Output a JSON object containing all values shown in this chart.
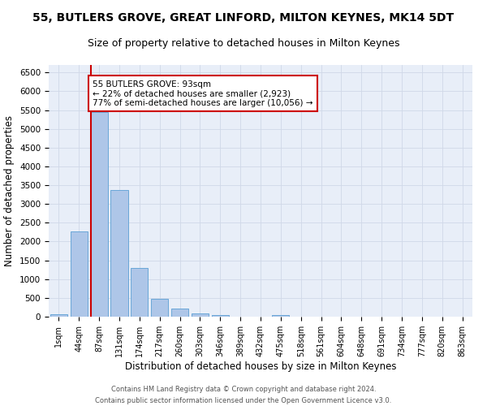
{
  "title": "55, BUTLERS GROVE, GREAT LINFORD, MILTON KEYNES, MK14 5DT",
  "subtitle": "Size of property relative to detached houses in Milton Keynes",
  "xlabel": "Distribution of detached houses by size in Milton Keynes",
  "ylabel": "Number of detached properties",
  "footer_line1": "Contains HM Land Registry data © Crown copyright and database right 2024.",
  "footer_line2": "Contains public sector information licensed under the Open Government Licence v3.0.",
  "categories": [
    "1sqm",
    "44sqm",
    "87sqm",
    "131sqm",
    "174sqm",
    "217sqm",
    "260sqm",
    "303sqm",
    "346sqm",
    "389sqm",
    "432sqm",
    "475sqm",
    "518sqm",
    "561sqm",
    "604sqm",
    "648sqm",
    "691sqm",
    "734sqm",
    "777sqm",
    "820sqm",
    "863sqm"
  ],
  "values": [
    60,
    2280,
    5450,
    3380,
    1300,
    480,
    210,
    90,
    50,
    0,
    0,
    50,
    0,
    0,
    0,
    0,
    0,
    0,
    0,
    0,
    0
  ],
  "bar_color": "#aec6e8",
  "bar_edgecolor": "#5a9fd4",
  "vline_x_index": 2,
  "vline_color": "#cc0000",
  "annotation_text": "55 BUTLERS GROVE: 93sqm\n← 22% of detached houses are smaller (2,923)\n77% of semi-detached houses are larger (10,056) →",
  "annotation_box_color": "#cc0000",
  "ylim": [
    0,
    6700
  ],
  "yticks": [
    0,
    500,
    1000,
    1500,
    2000,
    2500,
    3000,
    3500,
    4000,
    4500,
    5000,
    5500,
    6000,
    6500
  ],
  "grid_color": "#d0d8e8",
  "bg_color": "#e8eef8",
  "title_fontsize": 10,
  "subtitle_fontsize": 9,
  "xlabel_fontsize": 8.5,
  "ylabel_fontsize": 8.5,
  "tick_fontsize": 7,
  "ytick_fontsize": 7.5,
  "footer_fontsize": 6,
  "annotation_fontsize": 7.5
}
